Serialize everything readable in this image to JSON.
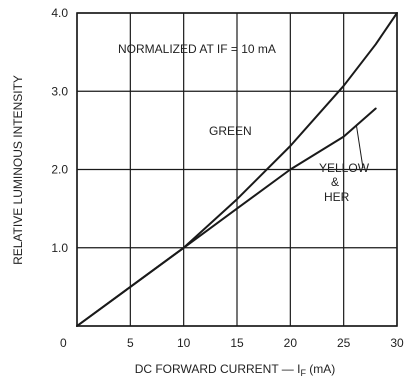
{
  "chart_data": {
    "type": "line",
    "title": "",
    "xlabel_main": "DC FORWARD CURRENT — I",
    "xlabel_sub": "F",
    "xlabel_tail": " (mA)",
    "ylabel": "RELATIVE LUMINOUS INTENSITY",
    "xlim": [
      0,
      30
    ],
    "ylim": [
      0,
      4.0
    ],
    "x_ticks": [
      "0",
      "5",
      "10",
      "15",
      "20",
      "25",
      "30"
    ],
    "y_ticks": [
      "0",
      "1.0",
      "2.0",
      "3.0",
      "4.0"
    ],
    "grid": true,
    "annotation": "NORMALIZED AT IF = 10 mA",
    "series": [
      {
        "name": "GREEN",
        "x": [
          0,
          5,
          10,
          15,
          20,
          25,
          28,
          30
        ],
        "y": [
          0,
          0.5,
          1.0,
          1.62,
          2.3,
          3.07,
          3.6,
          4.0
        ]
      },
      {
        "name_line1": "YELLOW",
        "name_line2": "&",
        "name_line3": "HER",
        "x": [
          0,
          5,
          10,
          15,
          20,
          25,
          28
        ],
        "y": [
          0,
          0.5,
          1.0,
          1.5,
          2.0,
          2.42,
          2.78
        ]
      }
    ],
    "colors": {
      "line": "#1a1a1a",
      "grid": "#1a1a1a",
      "background": "#ffffff"
    }
  }
}
